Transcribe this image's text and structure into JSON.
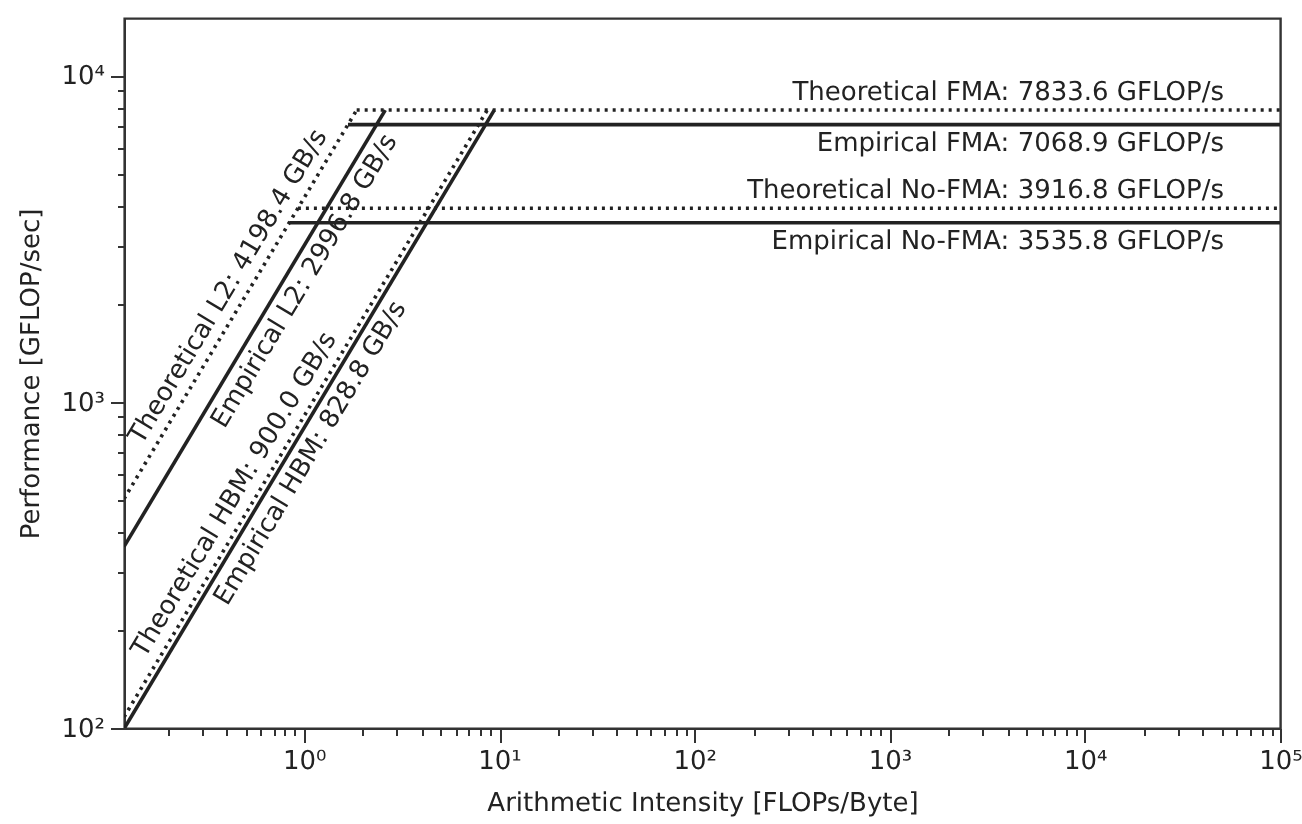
{
  "chart_data": {
    "type": "line",
    "xlabel": "Arithmetic Intensity [FLOPs/Byte]",
    "ylabel": "Performance [GFLOP/sec]",
    "log": "xy",
    "grid": false,
    "marker": "none",
    "xlim": [
      0.12,
      100000
    ],
    "ylim": [
      100,
      15000
    ],
    "xticks": [
      {
        "value": 0.2,
        "label": null
      },
      {
        "value": 0.3,
        "label": null
      },
      {
        "value": 0.4,
        "label": null
      },
      {
        "value": 0.5,
        "label": null
      },
      {
        "value": 0.6,
        "label": null
      },
      {
        "value": 0.7,
        "label": null
      },
      {
        "value": 0.8,
        "label": null
      },
      {
        "value": 0.9,
        "label": null
      },
      {
        "value": 1,
        "label": "10⁰"
      },
      {
        "value": 2,
        "label": null
      },
      {
        "value": 3,
        "label": null
      },
      {
        "value": 4,
        "label": null
      },
      {
        "value": 5,
        "label": null
      },
      {
        "value": 6,
        "label": null
      },
      {
        "value": 7,
        "label": null
      },
      {
        "value": 8,
        "label": null
      },
      {
        "value": 9,
        "label": null
      },
      {
        "value": 10,
        "label": "10¹"
      },
      {
        "value": 20,
        "label": null
      },
      {
        "value": 30,
        "label": null
      },
      {
        "value": 40,
        "label": null
      },
      {
        "value": 50,
        "label": null
      },
      {
        "value": 60,
        "label": null
      },
      {
        "value": 70,
        "label": null
      },
      {
        "value": 80,
        "label": null
      },
      {
        "value": 90,
        "label": null
      },
      {
        "value": 100,
        "label": "10²"
      },
      {
        "value": 200,
        "label": null
      },
      {
        "value": 300,
        "label": null
      },
      {
        "value": 400,
        "label": null
      },
      {
        "value": 500,
        "label": null
      },
      {
        "value": 600,
        "label": null
      },
      {
        "value": 700,
        "label": null
      },
      {
        "value": 800,
        "label": null
      },
      {
        "value": 900,
        "label": null
      },
      {
        "value": 1000,
        "label": "10³"
      },
      {
        "value": 2000,
        "label": null
      },
      {
        "value": 3000,
        "label": null
      },
      {
        "value": 4000,
        "label": null
      },
      {
        "value": 5000,
        "label": null
      },
      {
        "value": 6000,
        "label": null
      },
      {
        "value": 7000,
        "label": null
      },
      {
        "value": 8000,
        "label": null
      },
      {
        "value": 9000,
        "label": null
      },
      {
        "value": 10000,
        "label": "10⁴"
      },
      {
        "value": 20000,
        "label": null
      },
      {
        "value": 30000,
        "label": null
      },
      {
        "value": 40000,
        "label": null
      },
      {
        "value": 50000,
        "label": null
      },
      {
        "value": 60000,
        "label": null
      },
      {
        "value": 70000,
        "label": null
      },
      {
        "value": 80000,
        "label": null
      },
      {
        "value": 90000,
        "label": null
      },
      {
        "value": 100000,
        "label": "10⁵"
      }
    ],
    "yticks": [
      {
        "value": 100,
        "label": "10²"
      },
      {
        "value": 200,
        "label": null
      },
      {
        "value": 300,
        "label": null
      },
      {
        "value": 400,
        "label": null
      },
      {
        "value": 500,
        "label": null
      },
      {
        "value": 600,
        "label": null
      },
      {
        "value": 700,
        "label": null
      },
      {
        "value": 800,
        "label": null
      },
      {
        "value": 900,
        "label": null
      },
      {
        "value": 1000,
        "label": "10³"
      },
      {
        "value": 2000,
        "label": null
      },
      {
        "value": 3000,
        "label": null
      },
      {
        "value": 4000,
        "label": null
      },
      {
        "value": 5000,
        "label": null
      },
      {
        "value": 6000,
        "label": null
      },
      {
        "value": 7000,
        "label": null
      },
      {
        "value": 8000,
        "label": null
      },
      {
        "value": 9000,
        "label": null
      },
      {
        "value": 10000,
        "label": "10⁴"
      }
    ],
    "series": [
      {
        "color": "#222222",
        "line_style": "dotted",
        "x": [
          0.12,
          1.866
        ],
        "values": [
          503.8,
          7833.6
        ]
      },
      {
        "color": "#222222",
        "line_style": "solid",
        "x": [
          0.12,
          2.614
        ],
        "values": [
          359.6,
          7833.6
        ]
      },
      {
        "color": "#222222",
        "line_style": "dotted",
        "x": [
          0.12,
          8.704
        ],
        "values": [
          108,
          7833.6
        ]
      },
      {
        "color": "#222222",
        "line_style": "solid",
        "x": [
          0.1207,
          9.452
        ],
        "values": [
          100,
          7833.6
        ]
      },
      {
        "color": "#222222",
        "line_style": "dotted",
        "x": [
          1.866,
          100000
        ],
        "values": [
          7833.6,
          7833.6
        ]
      },
      {
        "color": "#222222",
        "line_style": "solid",
        "x": [
          1.684,
          100000
        ],
        "values": [
          7068.9,
          7068.9
        ]
      },
      {
        "color": "#222222",
        "line_style": "dotted",
        "x": [
          0.933,
          100000
        ],
        "values": [
          3916.8,
          3916.8
        ]
      },
      {
        "color": "#222222",
        "line_style": "solid",
        "x": [
          0.842,
          100000
        ],
        "values": [
          3535.8,
          3535.8
        ]
      }
    ],
    "annotations": [
      "Theoretical L2: 4198.4 GB/s",
      "Empirical L2: 2996.8 GB/s",
      "Theoretical HBM: 900.0 GB/s",
      "Empirical HBM: 828.8 GB/s",
      "Theoretical FMA: 7833.6 GFLOP/s",
      "Empirical FMA: 7068.9 GFLOP/s",
      "Theoretical No-FMA: 3916.8 GFLOP/s",
      "Empirical No-FMA: 3535.8 GFLOP/s"
    ]
  }
}
